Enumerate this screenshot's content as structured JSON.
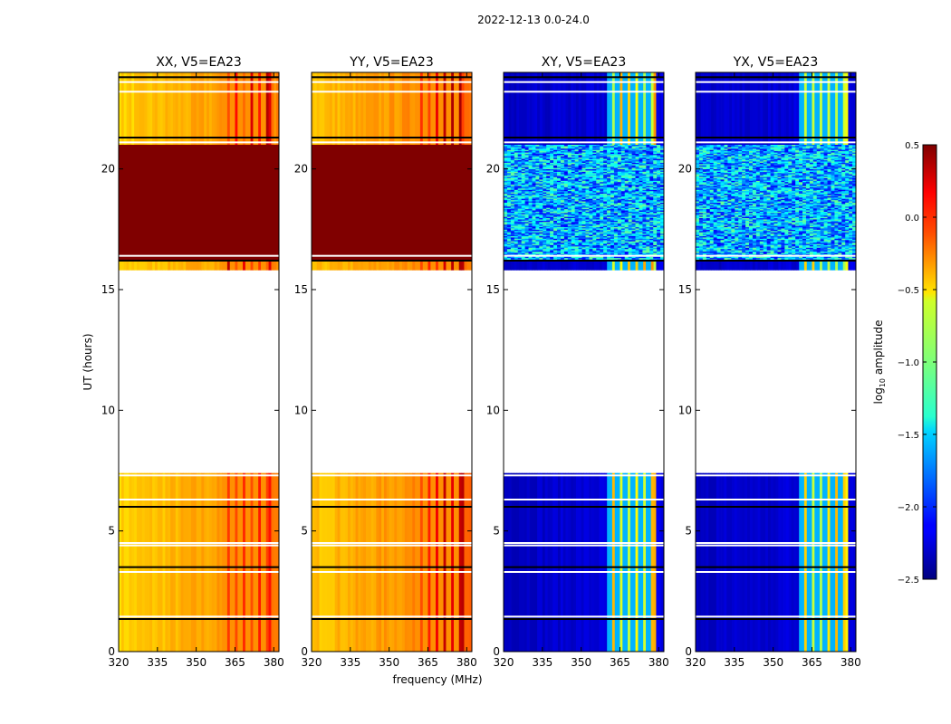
{
  "chart_data": {
    "type": "heatmap",
    "suptitle": "2022-12-13 0.0-24.0",
    "xlabel": "frequency (MHz)",
    "ylabel": "UT (hours)",
    "xlim": [
      320,
      382
    ],
    "ylim": [
      0,
      24
    ],
    "xticks": [
      320,
      335,
      350,
      365,
      380
    ],
    "yticks": [
      0,
      5,
      10,
      15,
      20
    ],
    "panels": [
      {
        "title": "XX, V5=EA23",
        "kind": "parallel",
        "base_level": -0.5,
        "rfi_level": 0.1,
        "flagged_band_level": 0.5
      },
      {
        "title": "YY, V5=EA23",
        "kind": "parallel",
        "base_level": -0.45,
        "rfi_level": 0.2,
        "flagged_band_level": 0.5
      },
      {
        "title": "XY, V5=EA23",
        "kind": "cross",
        "base_level": -2.3,
        "rfi_level": -0.6,
        "flagged_band_level": "noise"
      },
      {
        "title": "YX, V5=EA23",
        "kind": "cross",
        "base_level": -2.3,
        "rfi_level": -0.6,
        "flagged_band_level": "noise"
      }
    ],
    "time_blocks_hours": [
      {
        "start": 0.0,
        "end": 7.4,
        "label": "observed"
      },
      {
        "start": 15.8,
        "end": 16.2,
        "label": "observed"
      },
      {
        "start": 16.2,
        "end": 21.0,
        "label": "saturated"
      },
      {
        "start": 21.0,
        "end": 24.0,
        "label": "observed"
      }
    ],
    "gap_hours": [
      7.4,
      15.6
    ],
    "flag_lines_hours": [
      1.35,
      1.45,
      3.3,
      3.5,
      4.4,
      4.5,
      6.0,
      6.3,
      7.3,
      16.2,
      16.4,
      21.1,
      21.3,
      23.2,
      23.6,
      23.8
    ],
    "rfi_channels_mhz": [
      361,
      364,
      367,
      370,
      373,
      376
    ],
    "colorbar": {
      "label": "log10 amplitude",
      "vmin": -2.5,
      "vmax": 0.5,
      "ticks": [
        "0.5",
        "0.0",
        "−0.5",
        "−1.0",
        "−1.5",
        "−2.0",
        "−2.5"
      ],
      "cmap": "jet"
    }
  }
}
